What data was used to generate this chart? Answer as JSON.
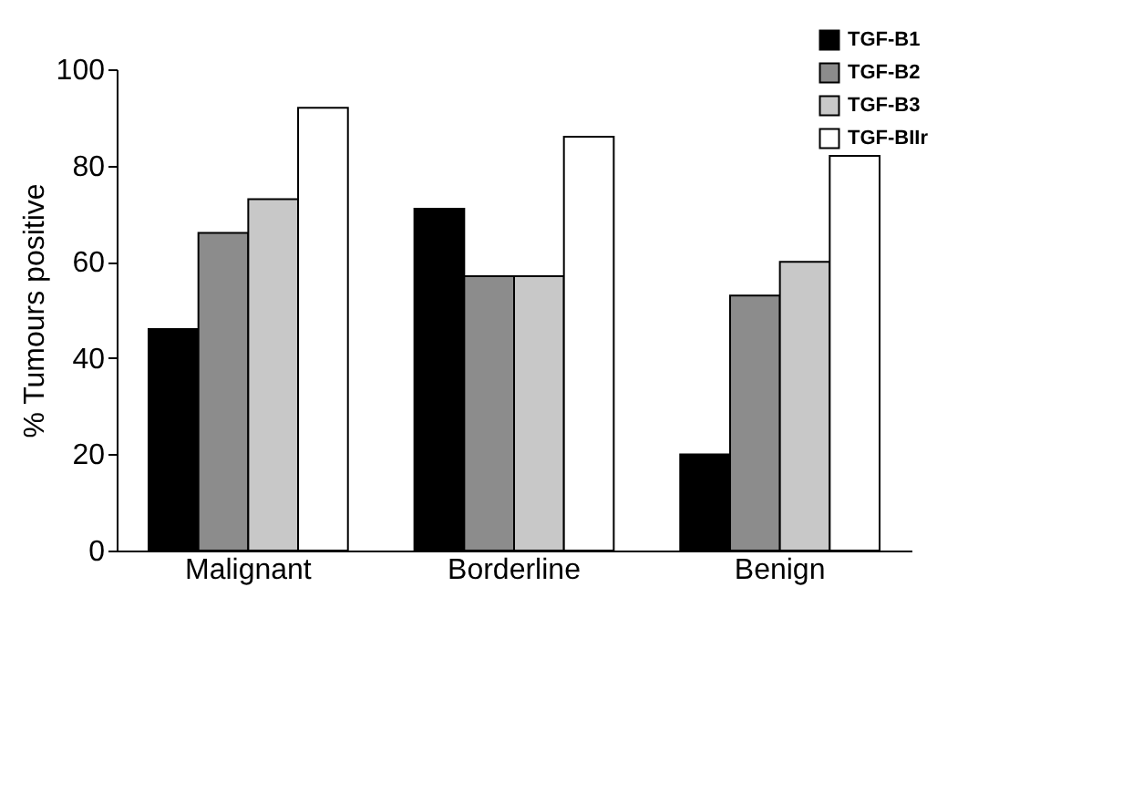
{
  "chart_data": {
    "type": "bar",
    "ylabel": "% Tumours positive",
    "categories": [
      "Malignant",
      "Borderline",
      "Benign"
    ],
    "series": [
      {
        "name": "TGF-B1",
        "color": "#000000",
        "values": [
          46,
          71,
          20
        ]
      },
      {
        "name": "TGF-B2",
        "color": "#8c8c8c",
        "values": [
          66,
          57,
          53
        ]
      },
      {
        "name": "TGF-B3",
        "color": "#c8c8c8",
        "values": [
          73,
          57,
          60
        ]
      },
      {
        "name": "TGF-BIIr",
        "color": "#ffffff",
        "values": [
          92,
          86,
          82
        ]
      }
    ],
    "ylim": [
      0,
      100
    ],
    "yticks": [
      0,
      20,
      40,
      60,
      80,
      100
    ],
    "grid": false,
    "legend": "top right"
  }
}
